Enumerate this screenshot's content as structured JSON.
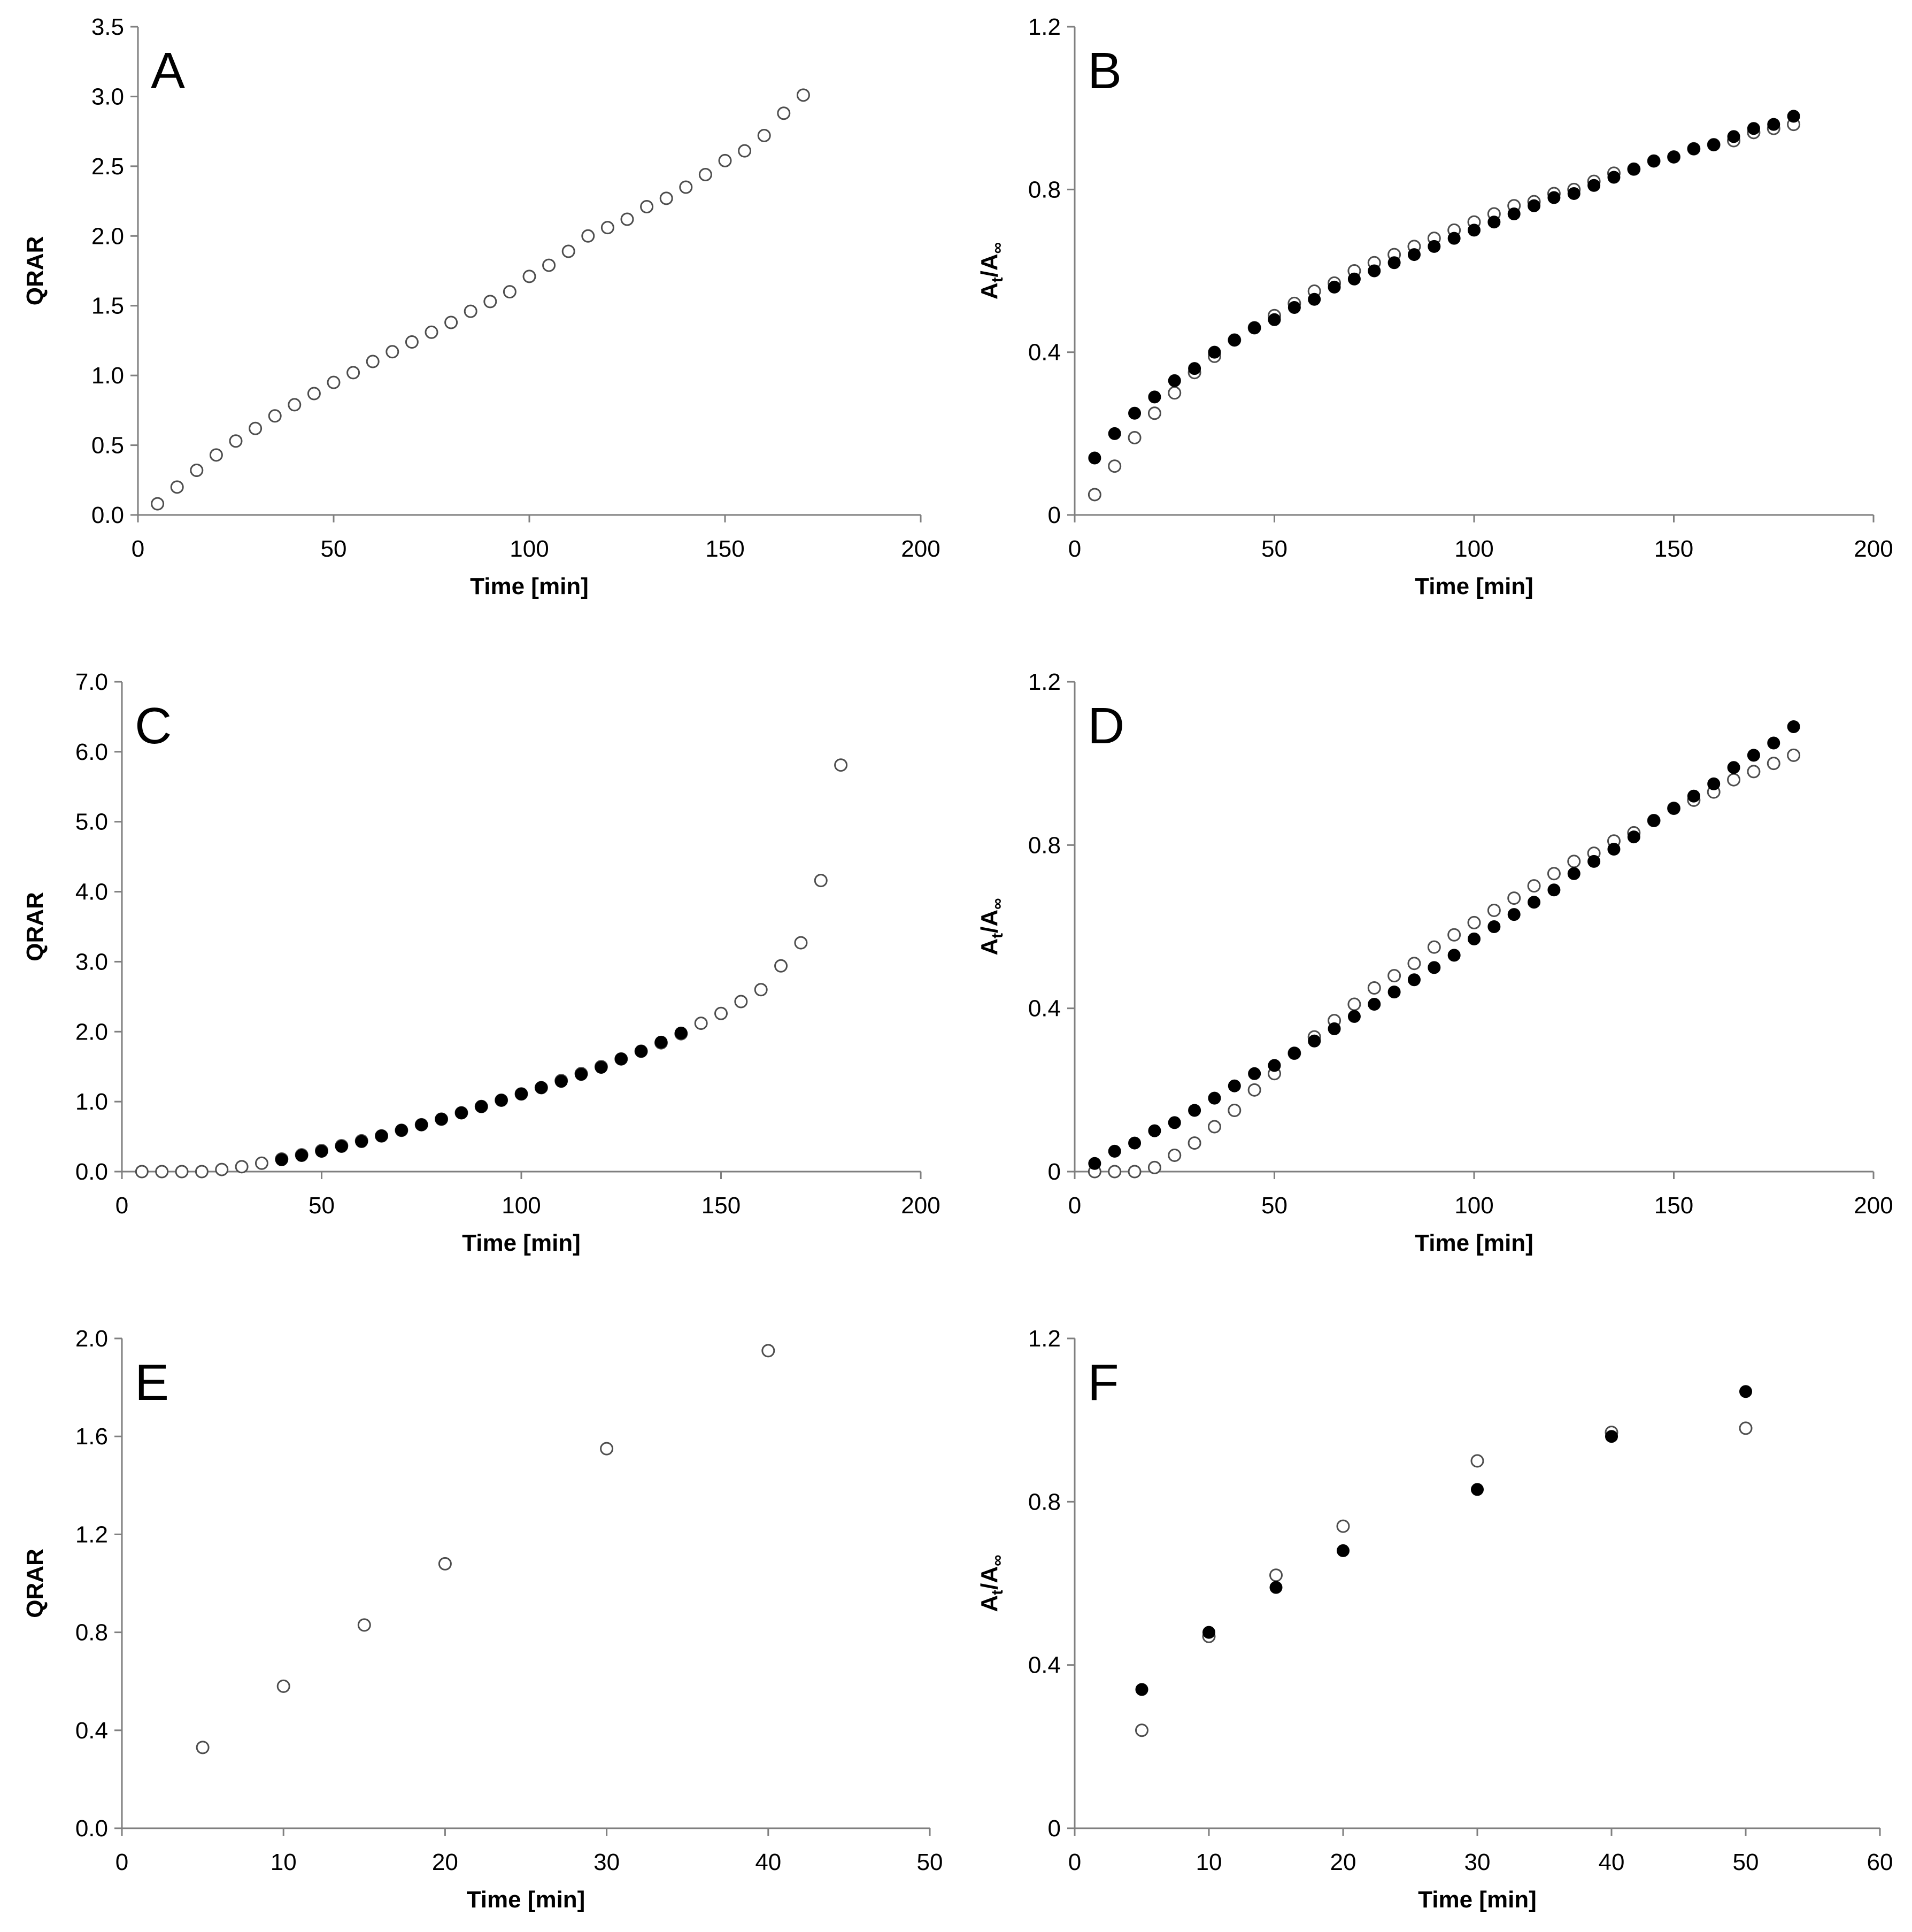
{
  "chart_data": [
    {
      "panel": "A",
      "type": "scatter",
      "xlabel": "Time [min]",
      "ylabel": "QRAR",
      "xlim": [
        0,
        200
      ],
      "ylim": [
        0,
        3.5
      ],
      "xticks": [
        "0",
        "50",
        "100",
        "150",
        "200"
      ],
      "yticks": [
        "0.0",
        "0.5",
        "1.0",
        "1.5",
        "2.0",
        "2.5",
        "3.0",
        "3.5"
      ],
      "series": [
        {
          "name": "open",
          "style": "open",
          "x": [
            5,
            10,
            15,
            20,
            25,
            30,
            35,
            40,
            45,
            50,
            55,
            60,
            65,
            70,
            75,
            80,
            85,
            90,
            95,
            100,
            105,
            110,
            115,
            120,
            125,
            130,
            135,
            140,
            145,
            150,
            155,
            160,
            165,
            170
          ],
          "y": [
            0.08,
            0.2,
            0.32,
            0.43,
            0.53,
            0.62,
            0.71,
            0.79,
            0.87,
            0.95,
            1.02,
            1.1,
            1.17,
            1.24,
            1.31,
            1.38,
            1.46,
            1.53,
            1.6,
            1.71,
            1.79,
            1.89,
            2.0,
            2.06,
            2.12,
            2.21,
            2.27,
            2.35,
            2.44,
            2.54,
            2.61,
            2.72,
            2.88,
            3.01
          ]
        }
      ]
    },
    {
      "panel": "B",
      "type": "scatter",
      "xlabel": "Time [min]",
      "ylabel": "At/A∞",
      "xlim": [
        0,
        200
      ],
      "ylim": [
        0,
        1.2
      ],
      "xticks": [
        "0",
        "50",
        "100",
        "150",
        "200"
      ],
      "yticks": [
        "0",
        "0.4",
        "0.8",
        "1.2"
      ],
      "series": [
        {
          "name": "open",
          "style": "open",
          "x": [
            5,
            10,
            15,
            20,
            25,
            30,
            35,
            40,
            45,
            50,
            55,
            60,
            65,
            70,
            75,
            80,
            85,
            90,
            95,
            100,
            105,
            110,
            115,
            120,
            125,
            130,
            135,
            140,
            145,
            150,
            155,
            160,
            165,
            170,
            175,
            180
          ],
          "y": [
            0.05,
            0.12,
            0.19,
            0.25,
            0.3,
            0.35,
            0.39,
            0.43,
            0.46,
            0.49,
            0.52,
            0.55,
            0.57,
            0.6,
            0.62,
            0.64,
            0.66,
            0.68,
            0.7,
            0.72,
            0.74,
            0.76,
            0.77,
            0.79,
            0.8,
            0.82,
            0.84,
            0.85,
            0.87,
            0.88,
            0.9,
            0.91,
            0.92,
            0.94,
            0.95,
            0.96
          ]
        },
        {
          "name": "filled",
          "style": "filled",
          "x": [
            5,
            10,
            15,
            20,
            25,
            30,
            35,
            40,
            45,
            50,
            55,
            60,
            65,
            70,
            75,
            80,
            85,
            90,
            95,
            100,
            105,
            110,
            115,
            120,
            125,
            130,
            135,
            140,
            145,
            150,
            155,
            160,
            165,
            170,
            175,
            180
          ],
          "y": [
            0.14,
            0.2,
            0.25,
            0.29,
            0.33,
            0.36,
            0.4,
            0.43,
            0.46,
            0.48,
            0.51,
            0.53,
            0.56,
            0.58,
            0.6,
            0.62,
            0.64,
            0.66,
            0.68,
            0.7,
            0.72,
            0.74,
            0.76,
            0.78,
            0.79,
            0.81,
            0.83,
            0.85,
            0.87,
            0.88,
            0.9,
            0.91,
            0.93,
            0.95,
            0.96,
            0.98
          ]
        }
      ]
    },
    {
      "panel": "C",
      "type": "scatter",
      "xlabel": "Time [min]",
      "ylabel": "QRAR",
      "xlim": [
        0,
        200
      ],
      "ylim": [
        0,
        7.0
      ],
      "xticks": [
        "0",
        "50",
        "100",
        "150",
        "200"
      ],
      "yticks": [
        "0.0",
        "1.0",
        "2.0",
        "3.0",
        "4.0",
        "5.0",
        "6.0",
        "7.0"
      ],
      "series": [
        {
          "name": "open",
          "style": "open",
          "x": [
            5,
            10,
            15,
            20,
            25,
            30,
            35,
            40,
            45,
            50,
            55,
            60,
            65,
            70,
            75,
            80,
            85,
            90,
            95,
            100,
            105,
            110,
            115,
            120,
            125,
            130,
            135,
            140,
            145,
            150,
            155,
            160,
            165,
            170,
            175,
            180
          ],
          "y": [
            0.0,
            0.0,
            0.0,
            0.0,
            0.03,
            0.07,
            0.12,
            0.18,
            0.24,
            0.3,
            0.37,
            0.44,
            0.51,
            0.59,
            0.67,
            0.75,
            0.84,
            0.93,
            1.02,
            1.11,
            1.2,
            1.3,
            1.4,
            1.5,
            1.61,
            1.72,
            1.84,
            1.97,
            2.12,
            2.26,
            2.43,
            2.6,
            2.94,
            3.27,
            4.16,
            5.81
          ]
        },
        {
          "name": "filled",
          "style": "filled",
          "x": [
            40,
            45,
            50,
            55,
            60,
            65,
            70,
            75,
            80,
            85,
            90,
            95,
            100,
            105,
            110,
            115,
            120,
            125,
            130,
            135,
            140
          ],
          "y": [
            0.17,
            0.23,
            0.29,
            0.36,
            0.43,
            0.51,
            0.59,
            0.67,
            0.75,
            0.84,
            0.93,
            1.02,
            1.11,
            1.2,
            1.29,
            1.39,
            1.49,
            1.61,
            1.72,
            1.85,
            1.98
          ]
        }
      ]
    },
    {
      "panel": "D",
      "type": "scatter",
      "xlabel": "Time [min]",
      "ylabel": "At/A∞",
      "xlim": [
        0,
        200
      ],
      "ylim": [
        0,
        1.2
      ],
      "xticks": [
        "0",
        "50",
        "100",
        "150",
        "200"
      ],
      "yticks": [
        "0",
        "0.4",
        "0.8",
        "1.2"
      ],
      "series": [
        {
          "name": "open",
          "style": "open",
          "x": [
            5,
            10,
            15,
            20,
            25,
            30,
            35,
            40,
            45,
            50,
            55,
            60,
            65,
            70,
            75,
            80,
            85,
            90,
            95,
            100,
            105,
            110,
            115,
            120,
            125,
            130,
            135,
            140,
            145,
            150,
            155,
            160,
            165,
            170,
            175,
            180
          ],
          "y": [
            0.0,
            0.0,
            0.0,
            0.01,
            0.04,
            0.07,
            0.11,
            0.15,
            0.2,
            0.24,
            0.29,
            0.33,
            0.37,
            0.41,
            0.45,
            0.48,
            0.51,
            0.55,
            0.58,
            0.61,
            0.64,
            0.67,
            0.7,
            0.73,
            0.76,
            0.78,
            0.81,
            0.83,
            0.86,
            0.89,
            0.91,
            0.93,
            0.96,
            0.98,
            1.0,
            1.02
          ]
        },
        {
          "name": "filled",
          "style": "filled",
          "x": [
            5,
            10,
            15,
            20,
            25,
            30,
            35,
            40,
            45,
            50,
            55,
            60,
            65,
            70,
            75,
            80,
            85,
            90,
            95,
            100,
            105,
            110,
            115,
            120,
            125,
            130,
            135,
            140,
            145,
            150,
            155,
            160,
            165,
            170,
            175,
            180
          ],
          "y": [
            0.02,
            0.05,
            0.07,
            0.1,
            0.12,
            0.15,
            0.18,
            0.21,
            0.24,
            0.26,
            0.29,
            0.32,
            0.35,
            0.38,
            0.41,
            0.44,
            0.47,
            0.5,
            0.53,
            0.57,
            0.6,
            0.63,
            0.66,
            0.69,
            0.73,
            0.76,
            0.79,
            0.82,
            0.86,
            0.89,
            0.92,
            0.95,
            0.99,
            1.02,
            1.05,
            1.09
          ]
        }
      ]
    },
    {
      "panel": "E",
      "type": "scatter",
      "xlabel": "Time [min]",
      "ylabel": "QRAR",
      "xlim": [
        0,
        50
      ],
      "ylim": [
        0,
        2.0
      ],
      "xticks": [
        "0",
        "10",
        "20",
        "30",
        "40",
        "50"
      ],
      "yticks": [
        "0.0",
        "0.4",
        "0.8",
        "1.2",
        "1.6",
        "2.0"
      ],
      "series": [
        {
          "name": "open",
          "style": "open",
          "x": [
            5,
            10,
            15,
            20,
            30,
            40
          ],
          "y": [
            0.33,
            0.58,
            0.83,
            1.08,
            1.55,
            1.95
          ]
        }
      ]
    },
    {
      "panel": "F",
      "type": "scatter",
      "xlabel": "Time [min]",
      "ylabel": "At/A∞",
      "xlim": [
        0,
        60
      ],
      "ylim": [
        0,
        1.2
      ],
      "xticks": [
        "0",
        "10",
        "20",
        "30",
        "40",
        "50",
        "60"
      ],
      "yticks": [
        "0",
        "0.4",
        "0.8",
        "1.2"
      ],
      "series": [
        {
          "name": "open",
          "style": "open",
          "x": [
            5,
            10,
            15,
            20,
            30,
            40,
            50
          ],
          "y": [
            0.24,
            0.47,
            0.62,
            0.74,
            0.9,
            0.97,
            0.98
          ]
        },
        {
          "name": "filled",
          "style": "filled",
          "x": [
            5,
            10,
            15,
            20,
            30,
            40,
            50
          ],
          "y": [
            0.34,
            0.48,
            0.59,
            0.68,
            0.83,
            0.96,
            1.07
          ]
        }
      ]
    }
  ]
}
